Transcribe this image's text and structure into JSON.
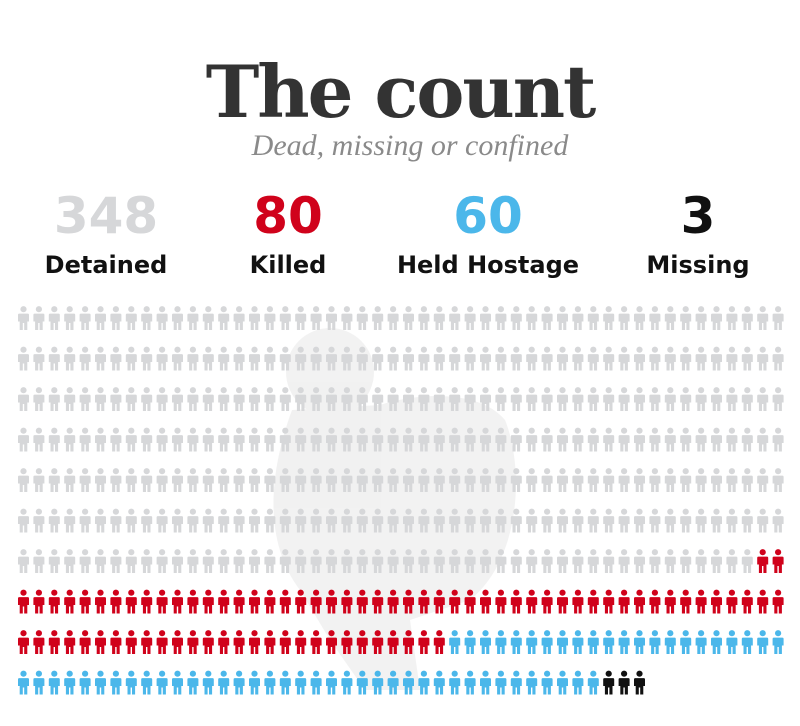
{
  "title": "The count",
  "subtitle": "Dead, missing or confined",
  "stats": [
    {
      "value": "348",
      "label": "Detained",
      "color": "#d6d7d9"
    },
    {
      "value": "80",
      "label": "Killed",
      "color": "#d0021b"
    },
    {
      "value": "60",
      "label": "Held Hostage",
      "color": "#4bb7ea"
    },
    {
      "value": "3",
      "label": "Missing",
      "color": "#111111"
    }
  ],
  "chart_data": {
    "type": "pictogram",
    "icon": "person-icon",
    "per_row": 50,
    "series": [
      {
        "name": "Detained",
        "value": 348,
        "color": "#d6d7d9"
      },
      {
        "name": "Killed",
        "value": 80,
        "color": "#d0021b"
      },
      {
        "name": "Held Hostage",
        "value": 60,
        "color": "#4bb7ea"
      },
      {
        "name": "Missing",
        "value": 3,
        "color": "#111111"
      }
    ]
  }
}
